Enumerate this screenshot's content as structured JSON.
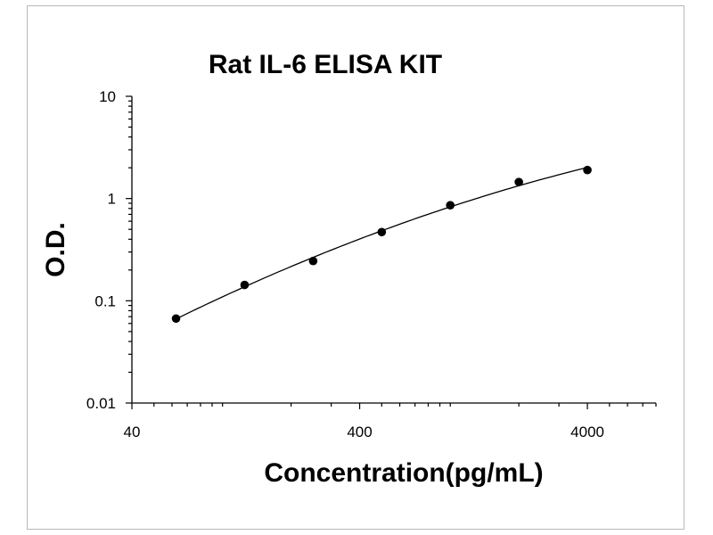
{
  "chart_data": {
    "type": "scatter",
    "title": "Rat IL-6 ELISA KIT",
    "xlabel": "Concentration(pg/mL)",
    "ylabel": "O.D.",
    "x_scale": "log",
    "y_scale": "log",
    "xlim": [
      40,
      8000
    ],
    "ylim": [
      0.01,
      10
    ],
    "x_ticks": [
      "40",
      "400",
      "4000"
    ],
    "y_ticks": [
      "10",
      "1",
      "0.1",
      "0.01"
    ],
    "grid": false,
    "trendline": true,
    "series": [
      {
        "x": [
          62.5,
          125,
          250,
          500,
          1000,
          2000,
          4000
        ],
        "y": [
          0.067,
          0.143,
          0.245,
          0.47,
          0.86,
          1.45,
          1.9
        ]
      }
    ],
    "colors": {
      "points": "#000000",
      "line": "#000000",
      "axes": "#000000",
      "frame": "#b9b9b9"
    }
  }
}
